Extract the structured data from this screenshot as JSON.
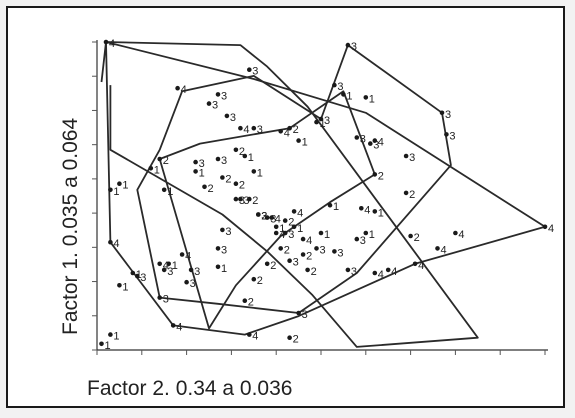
{
  "chart_data": {
    "type": "scatter",
    "title": "",
    "xlabel": "Factor 2. 0.34 a 0.036",
    "ylabel": "Factor 1. 0.035 a 0.064",
    "xlim": [
      0,
      100
    ],
    "ylim": [
      0,
      100
    ],
    "grid": false,
    "tick_labels_shown": false,
    "groups": [
      {
        "name": "1",
        "hull": [
          [
            3,
            86
          ],
          [
            3,
            65
          ],
          [
            28,
            44
          ],
          [
            38,
            32
          ],
          [
            48,
            18
          ],
          [
            58,
            1
          ],
          [
            85,
            4
          ],
          [
            47,
            79
          ],
          [
            38,
            92
          ],
          [
            32,
            99
          ],
          [
            2,
            100
          ],
          [
            1,
            87
          ]
        ],
        "points": [
          {
            "x": 1,
            "y": 2,
            "label": "1"
          },
          {
            "x": 55,
            "y": 83,
            "label": "1"
          },
          {
            "x": 60,
            "y": 82,
            "label": "1"
          },
          {
            "x": 49,
            "y": 74,
            "label": "1"
          },
          {
            "x": 45,
            "y": 68,
            "label": "1"
          },
          {
            "x": 33,
            "y": 63,
            "label": "1"
          },
          {
            "x": 35,
            "y": 58,
            "label": "1"
          },
          {
            "x": 52,
            "y": 47,
            "label": "1"
          },
          {
            "x": 44,
            "y": 40,
            "label": "1"
          },
          {
            "x": 62,
            "y": 45,
            "label": "1"
          },
          {
            "x": 12,
            "y": 59,
            "label": "1"
          },
          {
            "x": 40,
            "y": 40,
            "label": "1"
          },
          {
            "x": 50,
            "y": 38,
            "label": "1"
          },
          {
            "x": 60,
            "y": 38,
            "label": "1"
          },
          {
            "x": 22,
            "y": 58,
            "label": "1"
          },
          {
            "x": 15,
            "y": 52,
            "label": "1"
          },
          {
            "x": 5,
            "y": 54,
            "label": "1"
          },
          {
            "x": 3,
            "y": 52,
            "label": "1"
          },
          {
            "x": 8,
            "y": 25,
            "label": "1"
          },
          {
            "x": 5,
            "y": 21,
            "label": "1"
          },
          {
            "x": 16,
            "y": 28,
            "label": "1"
          },
          {
            "x": 3,
            "y": 5,
            "label": "1"
          },
          {
            "x": 27,
            "y": 27,
            "label": "1"
          }
        ]
      },
      {
        "name": "2",
        "hull": [
          [
            14,
            62
          ],
          [
            23,
            67
          ],
          [
            43,
            72
          ],
          [
            55,
            84
          ],
          [
            62,
            57
          ],
          [
            52,
            48
          ],
          [
            41,
            37
          ],
          [
            31,
            21
          ],
          [
            25,
            7
          ],
          [
            14,
            62
          ]
        ],
        "points": [
          {
            "x": 14,
            "y": 62,
            "label": "2"
          },
          {
            "x": 31,
            "y": 65,
            "label": "2"
          },
          {
            "x": 28,
            "y": 56,
            "label": "2"
          },
          {
            "x": 31,
            "y": 54,
            "label": "2"
          },
          {
            "x": 24,
            "y": 53,
            "label": "2"
          },
          {
            "x": 34,
            "y": 49,
            "label": "2"
          },
          {
            "x": 36,
            "y": 44,
            "label": "2"
          },
          {
            "x": 42,
            "y": 42,
            "label": "2"
          },
          {
            "x": 41,
            "y": 33,
            "label": "2"
          },
          {
            "x": 46,
            "y": 31,
            "label": "2"
          },
          {
            "x": 47,
            "y": 26,
            "label": "2"
          },
          {
            "x": 62,
            "y": 57,
            "label": "2"
          },
          {
            "x": 69,
            "y": 51,
            "label": "2"
          },
          {
            "x": 70,
            "y": 37,
            "label": "2"
          },
          {
            "x": 43,
            "y": 72,
            "label": "2"
          },
          {
            "x": 33,
            "y": 16,
            "label": "2"
          },
          {
            "x": 43,
            "y": 4,
            "label": "2"
          },
          {
            "x": 38,
            "y": 28,
            "label": "2"
          },
          {
            "x": 35,
            "y": 23,
            "label": "2"
          }
        ]
      },
      {
        "name": "3",
        "hull": [
          [
            14,
            65
          ],
          [
            19,
            84
          ],
          [
            35,
            89
          ],
          [
            50,
            75
          ],
          [
            56,
            99
          ],
          [
            77,
            77
          ],
          [
            79,
            60
          ],
          [
            58,
            25
          ],
          [
            45,
            12
          ],
          [
            27,
            15
          ],
          [
            14,
            17
          ],
          [
            9,
            52
          ],
          [
            14,
            65
          ]
        ],
        "points": [
          {
            "x": 56,
            "y": 99,
            "label": "3"
          },
          {
            "x": 34,
            "y": 91,
            "label": "3"
          },
          {
            "x": 53,
            "y": 86,
            "label": "3"
          },
          {
            "x": 25,
            "y": 80,
            "label": "3"
          },
          {
            "x": 29,
            "y": 76,
            "label": "3"
          },
          {
            "x": 77,
            "y": 77,
            "label": "3"
          },
          {
            "x": 35,
            "y": 72,
            "label": "3"
          },
          {
            "x": 27,
            "y": 62,
            "label": "3"
          },
          {
            "x": 50,
            "y": 75,
            "label": "3"
          },
          {
            "x": 58,
            "y": 69,
            "label": "3"
          },
          {
            "x": 61,
            "y": 67,
            "label": "3"
          },
          {
            "x": 69,
            "y": 63,
            "label": "3"
          },
          {
            "x": 22,
            "y": 61,
            "label": "3"
          },
          {
            "x": 32,
            "y": 49,
            "label": "3"
          },
          {
            "x": 36,
            "y": 44,
            "label": "3"
          },
          {
            "x": 38,
            "y": 43,
            "label": "3"
          },
          {
            "x": 28,
            "y": 39,
            "label": "3"
          },
          {
            "x": 42,
            "y": 38,
            "label": "3"
          },
          {
            "x": 49,
            "y": 33,
            "label": "3"
          },
          {
            "x": 53,
            "y": 32,
            "label": "3"
          },
          {
            "x": 43,
            "y": 29,
            "label": "3"
          },
          {
            "x": 27,
            "y": 33,
            "label": "3"
          },
          {
            "x": 21,
            "y": 26,
            "label": "3"
          },
          {
            "x": 20,
            "y": 22,
            "label": "3"
          },
          {
            "x": 58,
            "y": 36,
            "label": "3"
          },
          {
            "x": 56,
            "y": 26,
            "label": "3"
          },
          {
            "x": 45,
            "y": 12,
            "label": "3"
          },
          {
            "x": 15,
            "y": 26,
            "label": "3"
          },
          {
            "x": 9,
            "y": 24,
            "label": "3"
          },
          {
            "x": 14,
            "y": 17,
            "label": "3"
          },
          {
            "x": 78,
            "y": 70,
            "label": "3"
          },
          {
            "x": 31,
            "y": 49,
            "label": "3"
          },
          {
            "x": 27,
            "y": 83,
            "label": "3"
          }
        ]
      },
      {
        "name": "4",
        "hull": [
          [
            2,
            100
          ],
          [
            35,
            88
          ],
          [
            60,
            77
          ],
          [
            100,
            40
          ],
          [
            71,
            28
          ],
          [
            45,
            11
          ],
          [
            33,
            5
          ],
          [
            17,
            8
          ],
          [
            3,
            35
          ],
          [
            2,
            100
          ]
        ],
        "points": [
          {
            "x": 2,
            "y": 100,
            "label": "4"
          },
          {
            "x": 18,
            "y": 85,
            "label": "4"
          },
          {
            "x": 32,
            "y": 72,
            "label": "4"
          },
          {
            "x": 41,
            "y": 71,
            "label": "4"
          },
          {
            "x": 44,
            "y": 45,
            "label": "4"
          },
          {
            "x": 39,
            "y": 43,
            "label": "4"
          },
          {
            "x": 46,
            "y": 36,
            "label": "4"
          },
          {
            "x": 40,
            "y": 38,
            "label": "4"
          },
          {
            "x": 19,
            "y": 31,
            "label": "4"
          },
          {
            "x": 14,
            "y": 28,
            "label": "4"
          },
          {
            "x": 59,
            "y": 46,
            "label": "4"
          },
          {
            "x": 65,
            "y": 26,
            "label": "4"
          },
          {
            "x": 71,
            "y": 28,
            "label": "4"
          },
          {
            "x": 76,
            "y": 33,
            "label": "4"
          },
          {
            "x": 80,
            "y": 38,
            "label": "4"
          },
          {
            "x": 100,
            "y": 40,
            "label": "4"
          },
          {
            "x": 3,
            "y": 35,
            "label": "4"
          },
          {
            "x": 17,
            "y": 8,
            "label": "4"
          },
          {
            "x": 34,
            "y": 5,
            "label": "4"
          },
          {
            "x": 62,
            "y": 68,
            "label": "4"
          },
          {
            "x": 62,
            "y": 25,
            "label": "4"
          }
        ]
      }
    ]
  }
}
